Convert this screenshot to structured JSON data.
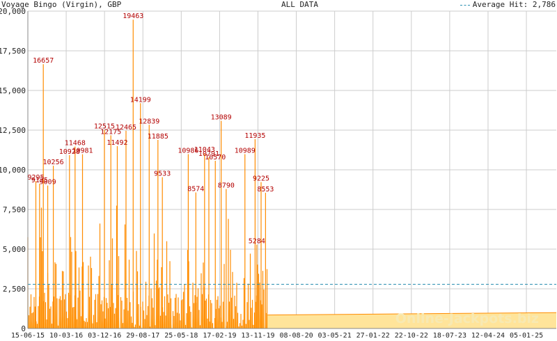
{
  "header": {
    "left_title": "Voyage Bingo (Virgin), GBP",
    "center_title": "ALL DATA",
    "legend_label": "Average Hit: 2,786"
  },
  "watermark": "Online-Jackpots.biz",
  "colors": {
    "hits": "#ff8c00",
    "fill": "#ffe49a",
    "labels": "#b30000",
    "average": "#2a8fb0",
    "grid": "#cccccc"
  },
  "chart_data": {
    "type": "line",
    "title": "Voyage Bingo (Virgin), GBP",
    "subtitle": "ALL DATA",
    "ylim": [
      0,
      20000
    ],
    "y_ticks": [
      "0",
      "2,500",
      "5,000",
      "7,500",
      "10,000",
      "12,500",
      "15,000",
      "17,500",
      "20,000"
    ],
    "x_ticks": [
      "15-06-15",
      "10-03-16",
      "03-12-16",
      "29-08-17",
      "25-05-18",
      "17-02-19",
      "13-11-19",
      "08-08-20",
      "03-05-21",
      "27-01-22",
      "22-10-22",
      "18-07-23",
      "12-04-24",
      "05-01-25"
    ],
    "series": [
      {
        "name": "Average Hit",
        "value": 2786
      }
    ],
    "labeled_peaks": [
      {
        "date": "2015-10-01",
        "value": 16657
      },
      {
        "date": "2015-08-10",
        "value": 9295
      },
      {
        "date": "2015-09-05",
        "value": 9125
      },
      {
        "date": "2015-11-01",
        "value": 9009
      },
      {
        "date": "2015-12-10",
        "value": 10256
      },
      {
        "date": "2016-04-01",
        "value": 10928
      },
      {
        "date": "2016-05-10",
        "value": 11468
      },
      {
        "date": "2016-07-01",
        "value": 10981
      },
      {
        "date": "2016-12-01",
        "value": 12515
      },
      {
        "date": "2017-01-15",
        "value": 12175
      },
      {
        "date": "2017-03-01",
        "value": 11492
      },
      {
        "date": "2017-05-01",
        "value": 12465
      },
      {
        "date": "2017-06-20",
        "value": 19463
      },
      {
        "date": "2017-08-10",
        "value": 14199
      },
      {
        "date": "2017-10-10",
        "value": 12839
      },
      {
        "date": "2017-12-10",
        "value": 11885
      },
      {
        "date": "2018-01-10",
        "value": 9533
      },
      {
        "date": "2018-07-10",
        "value": 10986
      },
      {
        "date": "2018-09-01",
        "value": 8574
      },
      {
        "date": "2018-11-01",
        "value": 11043
      },
      {
        "date": "2018-12-01",
        "value": 10791
      },
      {
        "date": "2019-01-15",
        "value": 10570
      },
      {
        "date": "2019-02-25",
        "value": 13089
      },
      {
        "date": "2019-04-01",
        "value": 8790
      },
      {
        "date": "2019-08-10",
        "value": 10989
      },
      {
        "date": "2019-10-20",
        "value": 11935
      },
      {
        "date": "2019-12-01",
        "value": 9225
      },
      {
        "date": "2020-01-01",
        "value": 8553
      },
      {
        "date": "2019-11-01",
        "value": 5284
      }
    ],
    "grid": true,
    "legend": "top-right"
  }
}
